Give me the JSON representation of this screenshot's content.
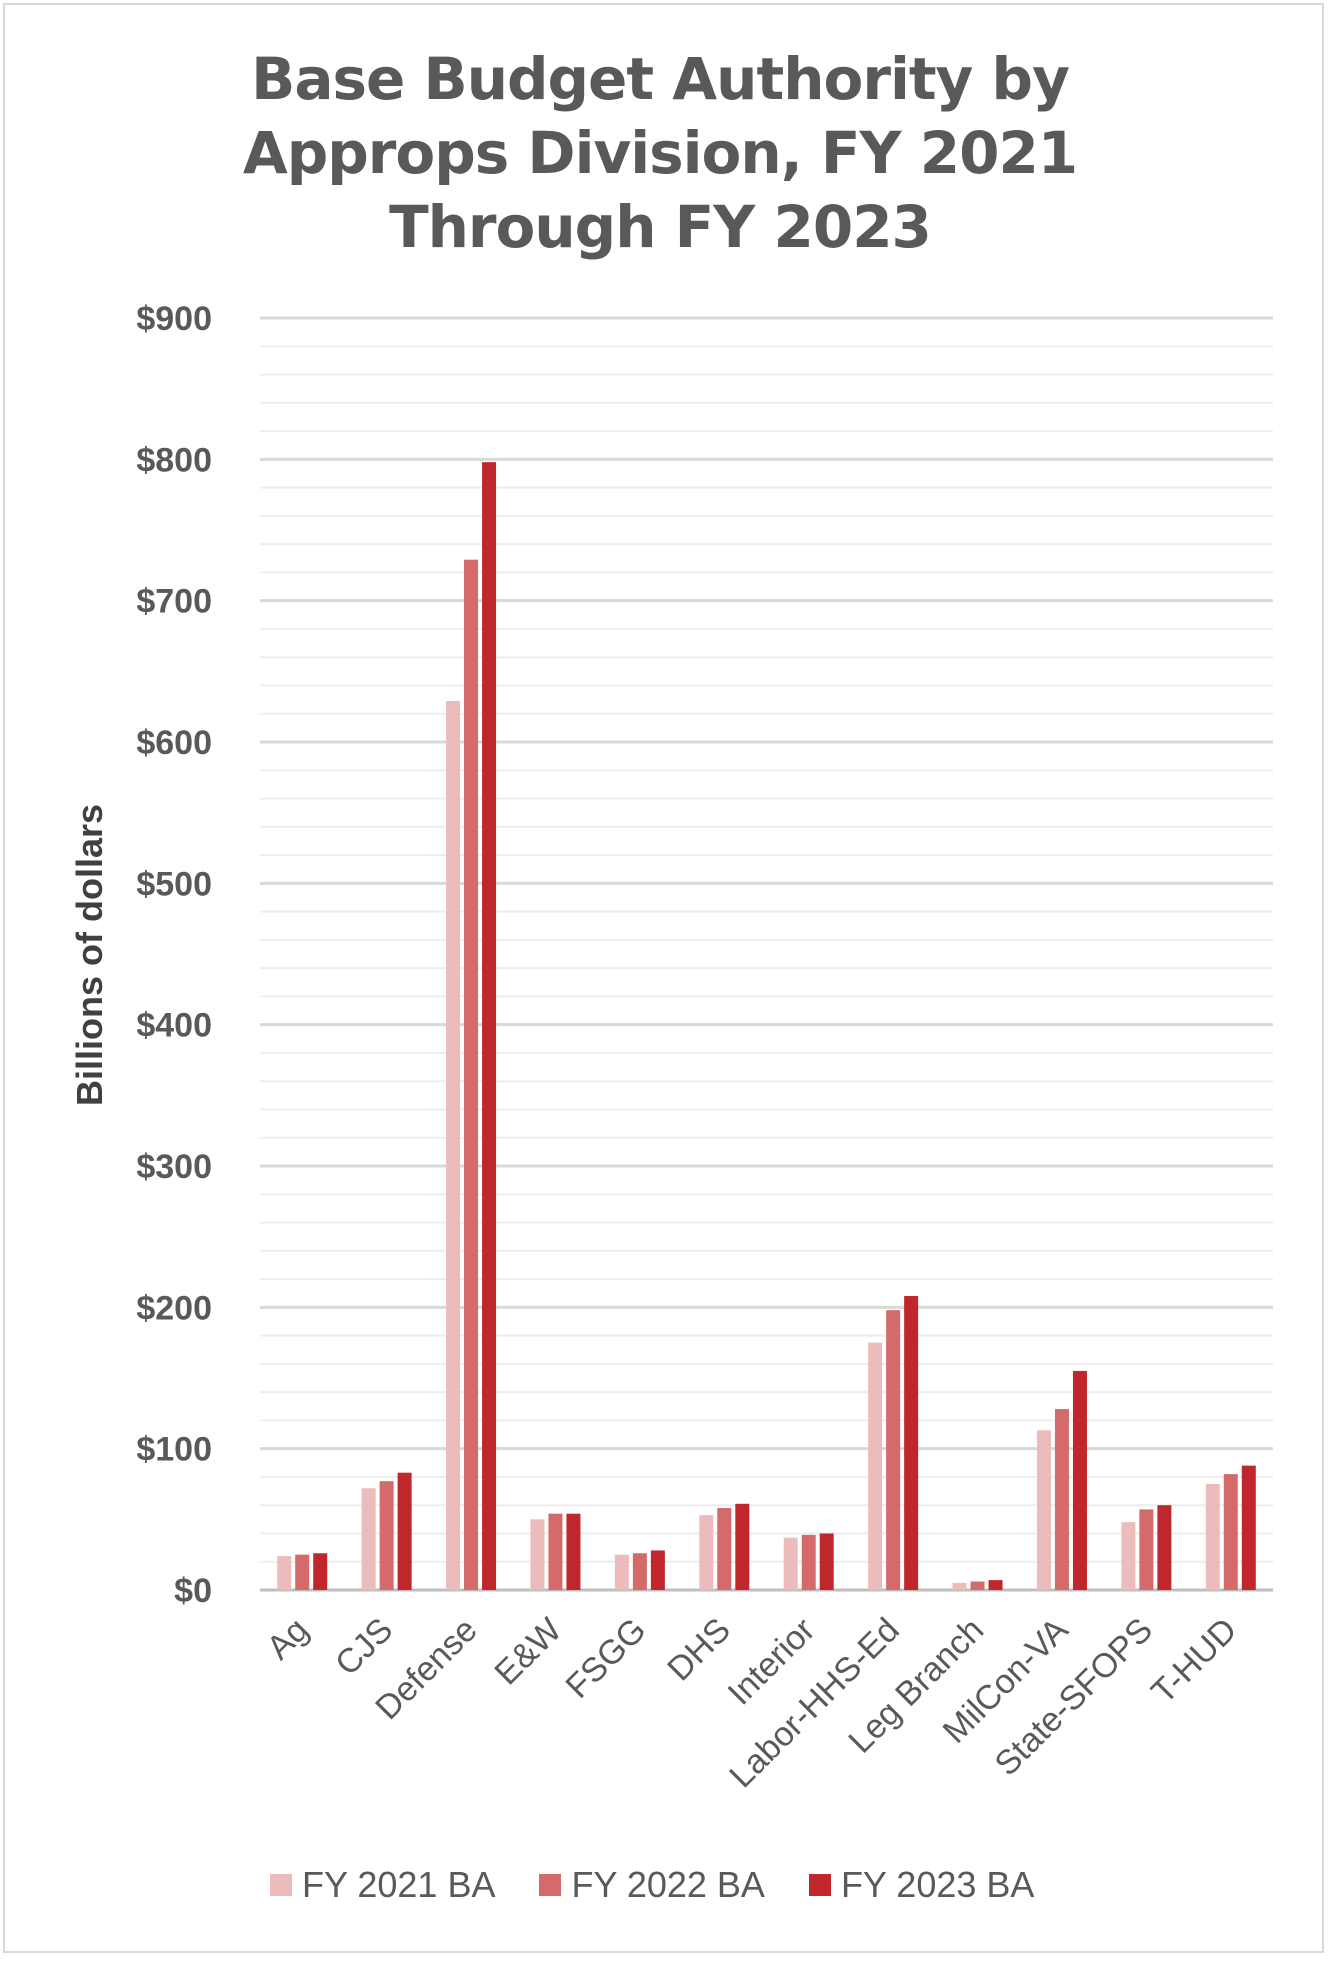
{
  "chart_data": {
    "type": "bar",
    "title": "Base Budget Authority by Approps Division, FY 2021 Through FY 2023",
    "title_lines": [
      "Base Budget Authority by",
      "Approps Division, FY 2021",
      "Through FY 2023"
    ],
    "ylabel": "Billions of dollars",
    "xlabel": "",
    "ylim": [
      0,
      900
    ],
    "y_ticks": [
      0,
      100,
      200,
      300,
      400,
      500,
      600,
      700,
      800,
      900
    ],
    "y_tick_labels": [
      "$0",
      "$100",
      "$200",
      "$300",
      "$400",
      "$500",
      "$600",
      "$700",
      "$800",
      "$900"
    ],
    "grid": true,
    "legend_position": "bottom",
    "categories": [
      "Ag",
      "CJS",
      "Defense",
      "E&W",
      "FSGG",
      "DHS",
      "Interior",
      "Labor-HHS-Ed",
      "Leg Branch",
      "MilCon-VA",
      "State-SFOPS",
      "T-HUD"
    ],
    "series": [
      {
        "name": "FY 2021 BA",
        "color": "#ecbcbc",
        "values": [
          24,
          72,
          629,
          50,
          25,
          53,
          37,
          175,
          5,
          113,
          48,
          75
        ]
      },
      {
        "name": "FY 2022 BA",
        "color": "#d46a6a",
        "values": [
          25,
          77,
          729,
          54,
          26,
          58,
          39,
          198,
          6,
          128,
          57,
          82
        ]
      },
      {
        "name": "FY 2023 BA",
        "color": "#c0272d",
        "values": [
          26,
          83,
          798,
          54,
          28,
          61,
          40,
          208,
          7,
          155,
          60,
          88
        ]
      }
    ]
  }
}
